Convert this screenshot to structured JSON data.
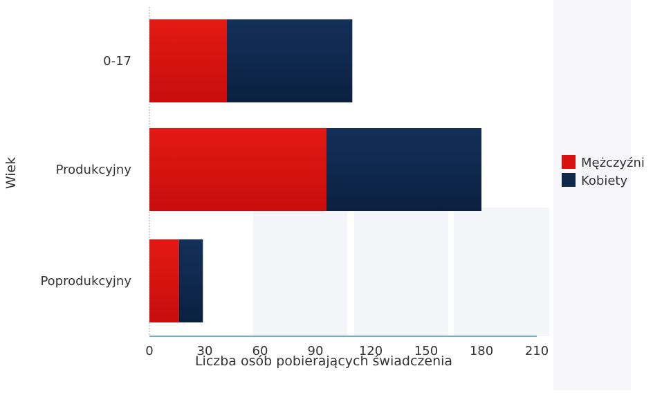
{
  "chart_data": {
    "type": "bar",
    "orientation": "horizontal",
    "stacked": true,
    "categories": [
      "0-17",
      "Produkcyjny",
      "Poprodukcyjny"
    ],
    "series": [
      {
        "name": "Mężczyźni",
        "color": "#d8120f",
        "values": [
          42,
          96,
          16
        ]
      },
      {
        "name": "Kobiety",
        "color": "#0f2748",
        "values": [
          68,
          84,
          13
        ]
      }
    ],
    "xlabel": "Liczba osób pobierających świadczenia",
    "ylabel": "Wiek",
    "xlim": [
      0,
      210
    ],
    "xticks": [
      "0",
      "30",
      "60",
      "90",
      "120",
      "150",
      "180",
      "210"
    ],
    "grid": false,
    "legend_position": "right"
  }
}
